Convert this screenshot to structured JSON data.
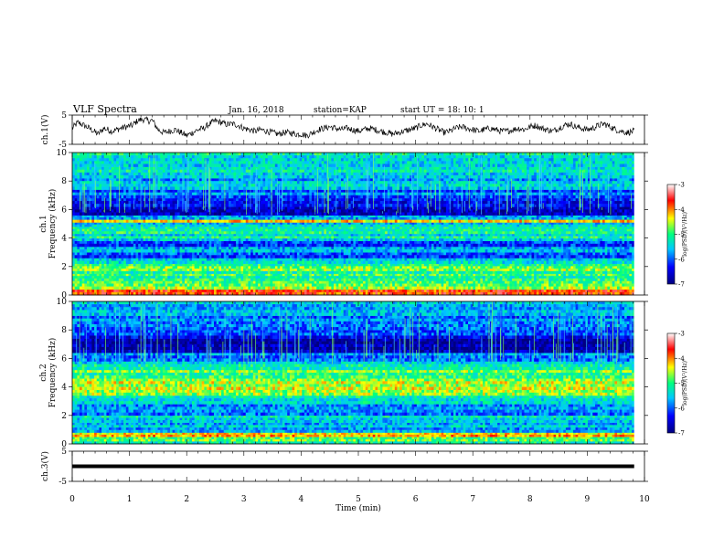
{
  "header": {
    "title": "VLF Spectra",
    "date": "Jan. 16, 2018",
    "station": "station=KAP",
    "start": "start  UT =   18: 10: 1"
  },
  "chart_data": [
    {
      "type": "line",
      "panel": "ch1-waveform",
      "ylabel": "ch.1(V)",
      "ylim": [
        -5,
        5
      ],
      "yticks": [
        "5",
        "-5"
      ],
      "xlim": [
        0,
        10
      ],
      "x_end": 9.82,
      "anchor_points": {
        "x": [
          0,
          0.1,
          0.2,
          0.3,
          0.45,
          0.55,
          0.7,
          0.85,
          0.95,
          1.05,
          1.15,
          1.25,
          1.35,
          1.4,
          1.5,
          1.6,
          1.7,
          1.8,
          1.9,
          2.0,
          2.1,
          2.2,
          2.3,
          2.4,
          2.5,
          2.6,
          2.7,
          2.8,
          2.9,
          3.0,
          3.1,
          3.2,
          3.3,
          3.4,
          3.5,
          3.6,
          3.7,
          3.8,
          3.9,
          4.0,
          4.1,
          4.2,
          4.3,
          4.4,
          4.5,
          4.6,
          4.7,
          4.8,
          4.9,
          5.0,
          5.1,
          5.2,
          5.3,
          5.4,
          5.5,
          5.6,
          5.7,
          5.8,
          5.9,
          6.0,
          6.1,
          6.2,
          6.3,
          6.4,
          6.5,
          6.6,
          6.7,
          6.8,
          6.9,
          7.0,
          7.1,
          7.2,
          7.3,
          7.4,
          7.5,
          7.6,
          7.7,
          7.8,
          7.9,
          8.0,
          8.1,
          8.2,
          8.3,
          8.4,
          8.5,
          8.6,
          8.7,
          8.8,
          8.9,
          9.0,
          9.1,
          9.2,
          9.3,
          9.4,
          9.5,
          9.6,
          9.7,
          9.82
        ],
        "y": [
          0.5,
          2.5,
          1.5,
          0.5,
          -1.5,
          0.5,
          -0.5,
          0.5,
          1.0,
          1.5,
          3.2,
          3.5,
          3.0,
          3.2,
          0.0,
          -1.0,
          -0.5,
          0.0,
          -1.0,
          -2.0,
          -1.0,
          0.0,
          0.5,
          2.0,
          3.0,
          2.5,
          1.8,
          2.0,
          1.5,
          0.5,
          0.0,
          -0.5,
          0.0,
          -0.5,
          -1.0,
          -1.5,
          -1.0,
          -1.0,
          -1.5,
          -1.5,
          -2.0,
          -1.0,
          0.0,
          0.5,
          1.0,
          0.5,
          0.0,
          0.5,
          0.0,
          -0.5,
          0.0,
          0.5,
          0.0,
          -0.5,
          -1.0,
          -1.5,
          -1.0,
          -0.5,
          0.0,
          0.5,
          1.5,
          2.0,
          1.0,
          0.0,
          -1.0,
          -0.5,
          0.5,
          1.0,
          0.5,
          0.0,
          -0.5,
          0.0,
          0.5,
          0.0,
          -0.5,
          -0.5,
          0.0,
          0.5,
          0.0,
          1.0,
          1.5,
          0.5,
          0.0,
          -0.5,
          0.5,
          1.5,
          2.0,
          1.0,
          0.5,
          0.0,
          0.5,
          1.5,
          2.0,
          1.0,
          0.0,
          -0.5,
          -1.0,
          -0.5
        ]
      }
    },
    {
      "type": "heatmap",
      "panel": "ch1-spectrogram",
      "ylabel": "ch.1 Frequency (kHz)",
      "ylim": [
        0,
        10
      ],
      "yticks": [
        "0",
        "2",
        "4",
        "6",
        "8",
        "10"
      ],
      "xlim": [
        0,
        10
      ],
      "x_end": 9.82,
      "colorscale": [
        "#000080",
        "#0000ff",
        "#00c8ff",
        "#00ff80",
        "#ffff00",
        "#ff0000",
        "#ffffff"
      ],
      "colorbar": {
        "label": "log(PSD)(V²/Hz)",
        "range": [
          -7,
          -3
        ],
        "ticks": [
          "-3",
          "-4",
          "-5",
          "-6",
          "-7"
        ]
      },
      "bands_kHz": [
        [
          0.0,
          0.4,
          -4.0
        ],
        [
          0.4,
          1.0,
          -4.7
        ],
        [
          1.0,
          1.5,
          -5.0
        ],
        [
          1.5,
          2.2,
          -4.9
        ],
        [
          2.2,
          2.6,
          -5.4
        ],
        [
          2.6,
          3.0,
          -6.0
        ],
        [
          3.0,
          3.4,
          -5.5
        ],
        [
          3.4,
          3.8,
          -6.0
        ],
        [
          3.8,
          4.3,
          -5.3
        ],
        [
          4.3,
          4.8,
          -5.2
        ],
        [
          4.8,
          5.1,
          -5.6
        ],
        [
          5.1,
          5.3,
          -4.2
        ],
        [
          5.3,
          5.6,
          -5.8
        ],
        [
          5.6,
          6.2,
          -6.6
        ],
        [
          6.2,
          6.8,
          -6.2
        ],
        [
          6.8,
          7.4,
          -5.9
        ],
        [
          7.4,
          8.2,
          -5.6
        ],
        [
          8.2,
          9.0,
          -5.4
        ],
        [
          9.0,
          10.0,
          -5.3
        ]
      ]
    },
    {
      "type": "heatmap",
      "panel": "ch2-spectrogram",
      "ylabel": "ch.2 Frequency (kHz)",
      "ylim": [
        0,
        10
      ],
      "yticks": [
        "0",
        "2",
        "4",
        "6",
        "8",
        "10"
      ],
      "xlim": [
        0,
        10
      ],
      "x_end": 9.82,
      "colorscale": [
        "#000080",
        "#0000ff",
        "#00c8ff",
        "#00ff80",
        "#ffff00",
        "#ff0000",
        "#ffffff"
      ],
      "colorbar": {
        "label": "log(PSD)(V²/Hz)",
        "range": [
          -7,
          -3
        ],
        "ticks": [
          "-3",
          "-4",
          "-5",
          "-6",
          "-7"
        ]
      },
      "bands_kHz": [
        [
          0.0,
          0.5,
          -5.0
        ],
        [
          0.5,
          0.8,
          -4.3
        ],
        [
          0.8,
          1.5,
          -5.6
        ],
        [
          1.5,
          2.0,
          -5.4
        ],
        [
          2.0,
          2.8,
          -5.8
        ],
        [
          2.8,
          3.4,
          -5.3
        ],
        [
          3.4,
          3.8,
          -4.6
        ],
        [
          3.8,
          4.6,
          -4.5
        ],
        [
          4.6,
          5.2,
          -4.9
        ],
        [
          5.2,
          5.8,
          -5.3
        ],
        [
          5.8,
          6.4,
          -5.8
        ],
        [
          6.4,
          7.4,
          -6.7
        ],
        [
          7.4,
          8.0,
          -6.2
        ],
        [
          8.0,
          9.0,
          -5.8
        ],
        [
          9.0,
          10.0,
          -5.6
        ]
      ]
    },
    {
      "type": "line",
      "panel": "ch3-waveform",
      "ylabel": "ch.3(V)",
      "ylim": [
        -5,
        5
      ],
      "yticks": [
        "5",
        "-5"
      ],
      "xlim": [
        0,
        10
      ],
      "x_end": 9.82,
      "level": 0,
      "xlabel": "Time (min)",
      "xticks": [
        "0",
        "1",
        "2",
        "3",
        "4",
        "5",
        "6",
        "7",
        "8",
        "9",
        "10"
      ]
    }
  ]
}
